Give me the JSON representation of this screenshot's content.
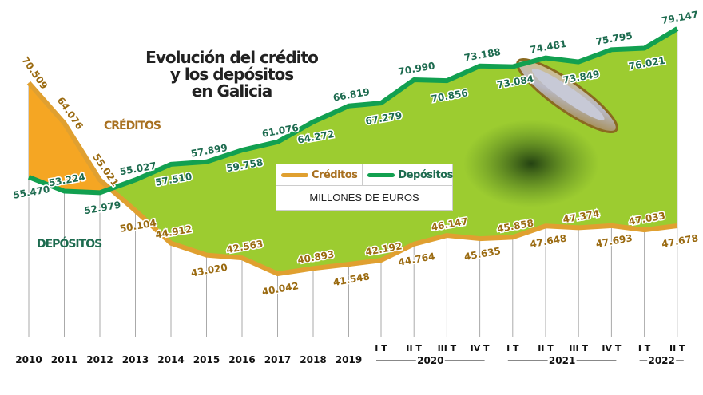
{
  "title_lines": [
    "Evolución del crédito",
    "y los depósitos",
    "en Galicia"
  ],
  "side_labels": {
    "creditos": "CRÉDITOS",
    "depositos": "DEPÓSITOS"
  },
  "colors": {
    "creditos": "#e0a030",
    "creditos_fill": "#f5a623",
    "depositos": "#12a050",
    "depositos_text": "#1d6b4f",
    "area": "#9ccc30"
  },
  "chart_data": {
    "type": "line",
    "title": "Evolución del crédito y los depósitos en Galicia",
    "units": "MILLONES DE EUROS",
    "categories": [
      "2010",
      "2011",
      "2012",
      "2013",
      "2014",
      "2015",
      "2016",
      "2017",
      "2018",
      "2019",
      "2020 IT",
      "2020 IIT",
      "2020 IIIT",
      "2020 IVT",
      "2021 IT",
      "2021 IIT",
      "2021 IIIT",
      "2021 IVT",
      "2022 IT",
      "2022 IIT"
    ],
    "tick_labels": [
      "2010",
      "2011",
      "2012",
      "2013",
      "2014",
      "2015",
      "2016",
      "2017",
      "2018",
      "2019",
      "I T",
      "II T",
      "III T",
      "IV T",
      "I T",
      "II T",
      "III T",
      "IV T",
      "I T",
      "II T"
    ],
    "group_labels": [
      "2020",
      "2021",
      "2022"
    ],
    "legend": [
      "Créditos",
      "Depósitos"
    ],
    "series": [
      {
        "name": "Créditos",
        "values": [
          70.509,
          64.076,
          55.021,
          50.104,
          44.912,
          43.02,
          42.563,
          40.042,
          40.893,
          41.548,
          42.192,
          44.764,
          46.147,
          45.635,
          45.858,
          47.648,
          47.374,
          47.693,
          47.033,
          47.678
        ],
        "labels": [
          "70.509",
          "64.076",
          "55.021",
          "50.104",
          "44.912",
          "43.020",
          "42.563",
          "40.042",
          "40.893",
          "41.548",
          "42.192",
          "44.764",
          "46.147",
          "45.635",
          "45.858",
          "47.648",
          "47.374",
          "47.693",
          "47.033",
          "47.678"
        ]
      },
      {
        "name": "Depósitos",
        "values": [
          55.47,
          53.224,
          52.979,
          55.027,
          57.51,
          57.899,
          59.758,
          61.076,
          64.272,
          66.819,
          67.279,
          70.99,
          70.856,
          73.188,
          73.084,
          74.481,
          73.849,
          75.795,
          76.021,
          79.147
        ],
        "labels": [
          "55.470",
          "53.224",
          "52.979",
          "55.027",
          "57.510",
          "57.899",
          "59.758",
          "61.076",
          "64.272",
          "66.819",
          "67.279",
          "70.990",
          "70.856",
          "73.188",
          "73.084",
          "74.481",
          "73.849",
          "75.795",
          "76.021",
          "79.147"
        ]
      }
    ]
  }
}
